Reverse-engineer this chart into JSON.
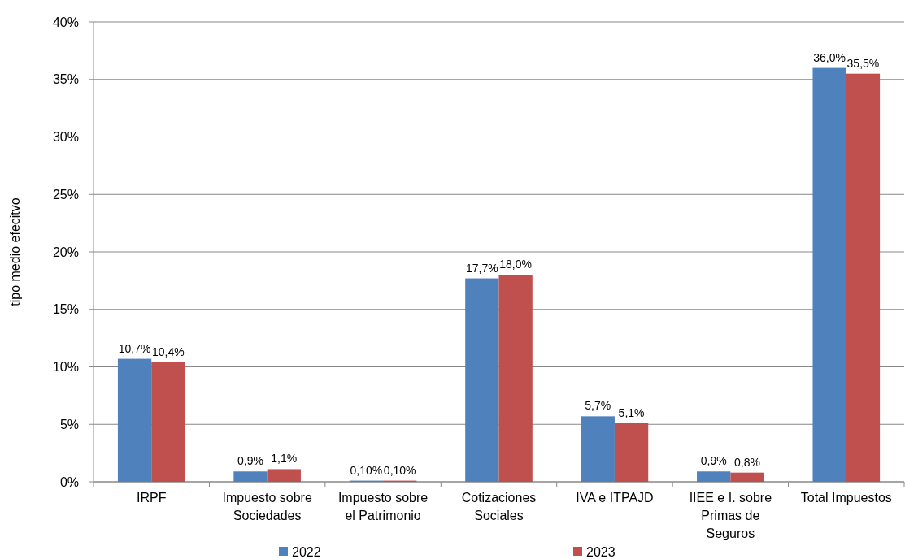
{
  "chart_data": {
    "type": "bar",
    "ylabel": "tipo medio efecitvo",
    "categories": [
      "IRPF",
      "Impuesto sobre Sociedades",
      "Impuesto sobre el Patrimonio",
      "Cotizaciones Sociales",
      "IVA e ITPAJD",
      "IIEE e I. sobre Primas de Seguros",
      "Total Impuestos"
    ],
    "series": [
      {
        "name": "2022",
        "color": "#4f81bd",
        "values": [
          10.7,
          0.9,
          0.1,
          17.7,
          5.7,
          0.9,
          36.0
        ],
        "value_labels": [
          "10,7%",
          "0,9%",
          "0,10%",
          "17,7%",
          "5,7%",
          "0,9%",
          "36,0%"
        ]
      },
      {
        "name": "2023",
        "color": "#c0504d",
        "values": [
          10.4,
          1.1,
          0.1,
          18.0,
          5.1,
          0.8,
          35.5
        ],
        "value_labels": [
          "10,4%",
          "1,1%",
          "0,10%",
          "18,0%",
          "5,1%",
          "0,8%",
          "35,5%"
        ]
      }
    ],
    "ylim": [
      0,
      40
    ],
    "yticks": [
      {
        "value": 0,
        "label": "0%"
      },
      {
        "value": 5,
        "label": "5%"
      },
      {
        "value": 10,
        "label": "10%"
      },
      {
        "value": 15,
        "label": "15%"
      },
      {
        "value": 20,
        "label": "20%"
      },
      {
        "value": 25,
        "label": "25%"
      },
      {
        "value": 30,
        "label": "30%"
      },
      {
        "value": 35,
        "label": "35%"
      },
      {
        "value": 40,
        "label": "40%"
      }
    ],
    "grid": "y",
    "legend": "bottom"
  }
}
